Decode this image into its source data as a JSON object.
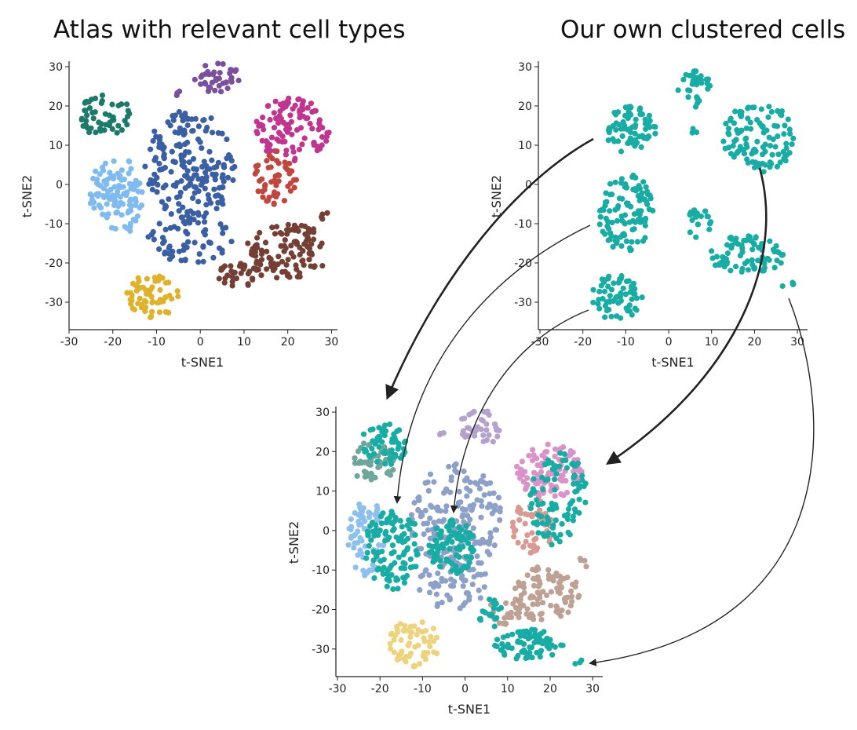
{
  "titles": {
    "left": "Atlas with relevant cell types",
    "right": "Our own clustered cells"
  },
  "colors": {
    "teal": "#18aca4",
    "arrow": "#222222"
  },
  "chart_data": [
    {
      "id": "atlas",
      "type": "scatter",
      "title": "Atlas with relevant cell types",
      "xlabel": "t-SNE1",
      "ylabel": "t-SNE2",
      "xlim": [
        -30,
        31
      ],
      "ylim": [
        -37,
        31
      ],
      "xticks": [
        -30,
        -20,
        -10,
        0,
        10,
        20,
        30
      ],
      "yticks": [
        -30,
        -20,
        -10,
        0,
        10,
        20,
        30
      ],
      "grid": false,
      "clusters": [
        {
          "color": "#1d7a6a",
          "center": [
            -21.5,
            17.5
          ],
          "radius": [
            6,
            6
          ],
          "n": 52
        },
        {
          "color": "#7a4f9c",
          "center": [
            4,
            27
          ],
          "radius": [
            5.5,
            4
          ],
          "n": 38
        },
        {
          "color": "#7a4f9c",
          "center": [
            -5,
            23.5
          ],
          "radius": [
            1,
            1
          ],
          "n": 3
        },
        {
          "color": "#3a5fa3",
          "center": [
            -2,
            5
          ],
          "radius": [
            11,
            14
          ],
          "n": 190
        },
        {
          "color": "#3a5fa3",
          "center": [
            -2,
            -14
          ],
          "radius": [
            10,
            6
          ],
          "n": 60
        },
        {
          "color": "#c0358f",
          "center": [
            21,
            14
          ],
          "radius": [
            8.5,
            8
          ],
          "n": 105
        },
        {
          "color": "#7fbbef",
          "center": [
            -19,
            -3
          ],
          "radius": [
            6.5,
            10
          ],
          "n": 110
        },
        {
          "color": "#c0473f",
          "center": [
            17,
            1.5
          ],
          "radius": [
            5,
            7
          ],
          "n": 52
        },
        {
          "color": "#744035",
          "center": [
            20,
            -17
          ],
          "radius": [
            10,
            7
          ],
          "n": 110
        },
        {
          "color": "#744035",
          "center": [
            9,
            -23
          ],
          "radius": [
            5,
            3
          ],
          "n": 30
        },
        {
          "color": "#744035",
          "center": [
            28.5,
            -8
          ],
          "radius": [
            1.5,
            1.2
          ],
          "n": 4
        },
        {
          "color": "#e0b22c",
          "center": [
            -11,
            -28.5
          ],
          "radius": [
            6,
            5.5
          ],
          "n": 60
        }
      ]
    },
    {
      "id": "own",
      "type": "scatter",
      "title": "Our own clustered cells",
      "xlabel": "t-SNE1",
      "ylabel": "t-SNE2",
      "xlim": [
        -30,
        32
      ],
      "ylim": [
        -37,
        31
      ],
      "xticks": [
        -30,
        -20,
        -10,
        0,
        10,
        20,
        30
      ],
      "yticks": [
        -30,
        -20,
        -10,
        0,
        10,
        20,
        30
      ],
      "grid": false,
      "clusters": [
        {
          "color": "#18aca4",
          "center": [
            -9,
            14
          ],
          "radius": [
            6,
            6
          ],
          "n": 75
        },
        {
          "color": "#18aca4",
          "center": [
            6,
            24
          ],
          "radius": [
            4,
            5
          ],
          "n": 35
        },
        {
          "color": "#18aca4",
          "center": [
            6,
            13.5
          ],
          "radius": [
            0.8,
            0.8
          ],
          "n": 3
        },
        {
          "color": "#18aca4",
          "center": [
            21,
            12
          ],
          "radius": [
            8.5,
            9
          ],
          "n": 110
        },
        {
          "color": "#18aca4",
          "center": [
            -10,
            -7
          ],
          "radius": [
            6.5,
            10
          ],
          "n": 105
        },
        {
          "color": "#18aca4",
          "center": [
            7,
            -10
          ],
          "radius": [
            3,
            4
          ],
          "n": 20
        },
        {
          "color": "#18aca4",
          "center": [
            18,
            -18
          ],
          "radius": [
            9,
            5
          ],
          "n": 80
        },
        {
          "color": "#18aca4",
          "center": [
            28,
            -26
          ],
          "radius": [
            1.5,
            1.5
          ],
          "n": 4
        },
        {
          "color": "#18aca4",
          "center": [
            -12,
            -29
          ],
          "radius": [
            6,
            6
          ],
          "n": 62
        }
      ]
    },
    {
      "id": "merged",
      "type": "scatter",
      "title": "",
      "xlabel": "t-SNE1",
      "ylabel": "t-SNE2",
      "xlim": [
        -30,
        32
      ],
      "ylim": [
        -37,
        31
      ],
      "xticks": [
        -30,
        -20,
        -10,
        0,
        10,
        20,
        30
      ],
      "yticks": [
        -30,
        -20,
        -10,
        0,
        10,
        20,
        30
      ],
      "grid": false,
      "clusters": [
        {
          "color": "#6fa69c",
          "center": [
            -22,
            17
          ],
          "radius": [
            5.5,
            5.5
          ],
          "n": 50
        },
        {
          "color": "#b4a2cd",
          "center": [
            3.5,
            26
          ],
          "radius": [
            5,
            4.5
          ],
          "n": 38
        },
        {
          "color": "#b4a2cd",
          "center": [
            -5.5,
            24
          ],
          "radius": [
            1,
            1
          ],
          "n": 3
        },
        {
          "color": "#8ca0c8",
          "center": [
            -2,
            3
          ],
          "radius": [
            11,
            14
          ],
          "n": 190
        },
        {
          "color": "#8ca0c8",
          "center": [
            -3,
            -14
          ],
          "radius": [
            9,
            6
          ],
          "n": 55
        },
        {
          "color": "#da93c8",
          "center": [
            20,
            15
          ],
          "radius": [
            8,
            7
          ],
          "n": 95
        },
        {
          "color": "#8dc0ed",
          "center": [
            -23,
            -2
          ],
          "radius": [
            4.5,
            10
          ],
          "n": 70
        },
        {
          "color": "#d89a93",
          "center": [
            16,
            1
          ],
          "radius": [
            5,
            7
          ],
          "n": 50
        },
        {
          "color": "#bea195",
          "center": [
            19,
            -16
          ],
          "radius": [
            8,
            7
          ],
          "n": 90
        },
        {
          "color": "#bea195",
          "center": [
            9,
            -21
          ],
          "radius": [
            5,
            3
          ],
          "n": 25
        },
        {
          "color": "#bea195",
          "center": [
            28,
            -8
          ],
          "radius": [
            1.5,
            1.2
          ],
          "n": 4
        },
        {
          "color": "#ecd47e",
          "center": [
            -12,
            -28.5
          ],
          "radius": [
            6,
            6
          ],
          "n": 60
        },
        {
          "color": "#18aca4",
          "center": [
            -19,
            22
          ],
          "radius": [
            5.5,
            5.5
          ],
          "n": 60
        },
        {
          "color": "#18aca4",
          "center": [
            -17,
            -5
          ],
          "radius": [
            7,
            10
          ],
          "n": 105
        },
        {
          "color": "#18aca4",
          "center": [
            -3,
            -4
          ],
          "radius": [
            5.5,
            7
          ],
          "n": 85
        },
        {
          "color": "#18aca4",
          "center": [
            22,
            8
          ],
          "radius": [
            7,
            12
          ],
          "n": 100
        },
        {
          "color": "#18aca4",
          "center": [
            6,
            -21
          ],
          "radius": [
            3,
            4
          ],
          "n": 20
        },
        {
          "color": "#18aca4",
          "center": [
            15,
            -29
          ],
          "radius": [
            8,
            4
          ],
          "n": 75
        },
        {
          "color": "#18aca4",
          "center": [
            26.5,
            -33.5
          ],
          "radius": [
            1.2,
            1
          ],
          "n": 3
        }
      ]
    }
  ]
}
